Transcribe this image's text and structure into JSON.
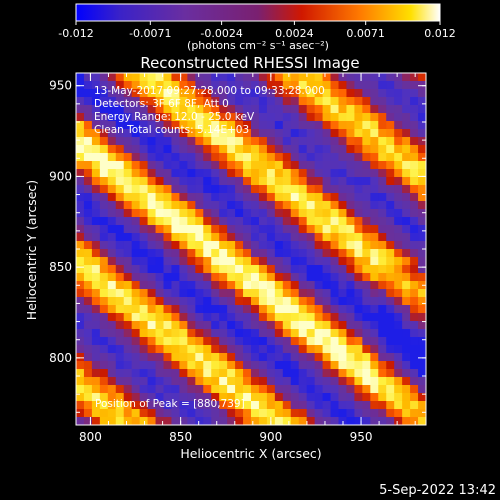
{
  "chart_data": {
    "type": "heatmap",
    "title": "Reconstructed RHESSI Image",
    "colorbar": {
      "ticks": [
        "-0.012",
        "-0.0071",
        "-0.0024",
        "0.0024",
        "0.0071",
        "0.012"
      ],
      "range": [
        -0.012,
        0.012
      ],
      "unit_label": "(photons cm⁻² s⁻¹ asec⁻²)",
      "colormap": [
        "#0000ff",
        "#5a2a9c",
        "#6b2f9a",
        "#cc2a00",
        "#ff6a00",
        "#ffd000",
        "#ffffcc"
      ]
    },
    "xlabel": "Heliocentric X (arcsec)",
    "ylabel": "Heliocentric Y (arcsec)",
    "xlim": [
      792,
      986
    ],
    "ylim": [
      763,
      957
    ],
    "xticks": [
      800,
      850,
      900,
      950
    ],
    "yticks": [
      800,
      850,
      900,
      950
    ],
    "info": [
      "13-May-2017 09:27:28.000 to 09:33:28.000",
      "Detectors: 3F 6F 8F, Att 0",
      "Energy Range: 12.0 - 25.0 keV",
      "Clean    Total counts: 5.14E+03"
    ],
    "peak_label": "Position of Peak = [880,739]",
    "pattern": {
      "description_values": "diagonal stripes of alternating positive/negative flux",
      "stripe_period_arcsec": 52,
      "stripe_angle_deg": 35,
      "bright_ridges_offsets_arcsec": [
        0,
        55,
        -55
      ],
      "values": {
        "max": 0.012,
        "min": -0.012
      }
    }
  },
  "footer": {
    "date": "5-Sep-2022 13:42"
  }
}
